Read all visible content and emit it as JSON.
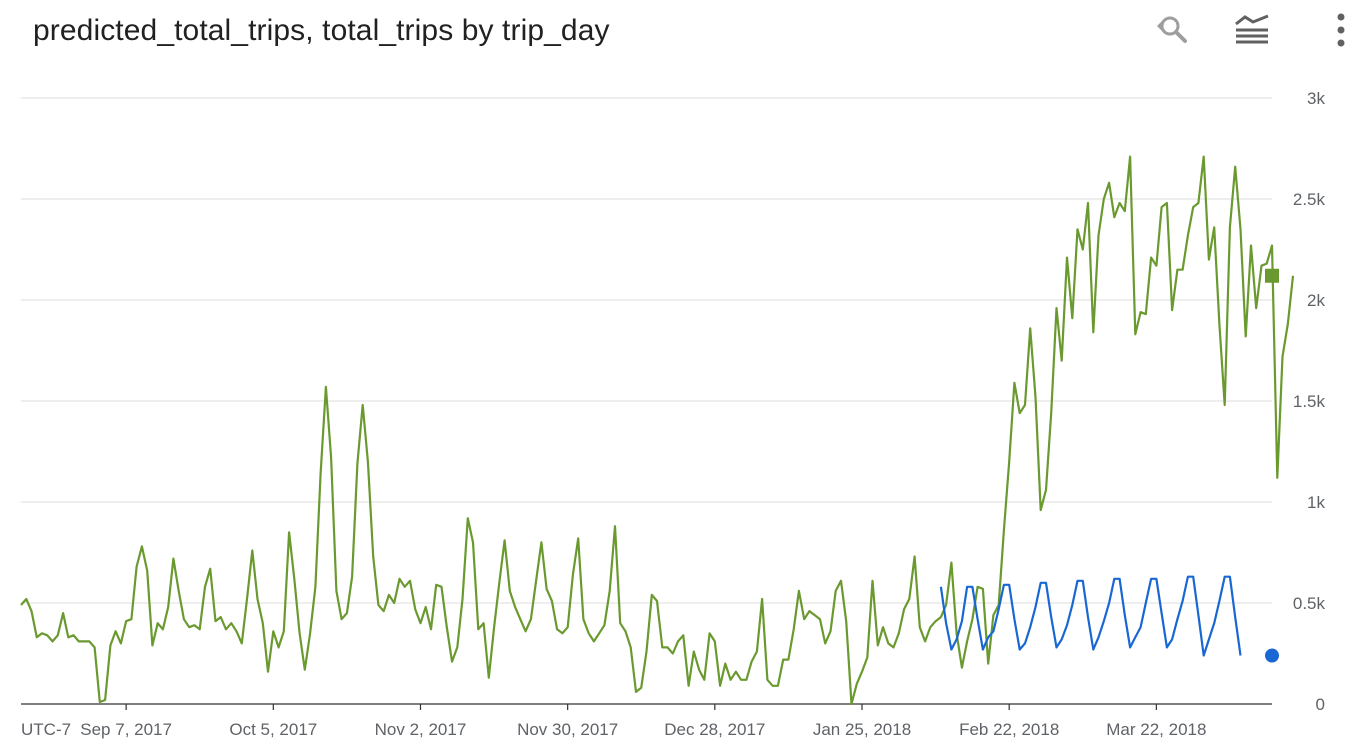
{
  "header": {
    "title": "predicted_total_trips, total_trips by trip_day",
    "reset_zoom_icon": "reset-zoom-icon",
    "legend_icon": "legend-toggle-icon",
    "more_icon": "more-vert-icon"
  },
  "chart_data": {
    "type": "line",
    "title": "predicted_total_trips, total_trips by trip_day",
    "timezone_label": "UTC-7",
    "x_tick_labels": [
      "Sep 7, 2017",
      "Oct 5, 2017",
      "Nov 2, 2017",
      "Nov 30, 2017",
      "Dec 28, 2017",
      "Jan 25, 2018",
      "Feb 22, 2018",
      "Mar 22, 2018"
    ],
    "x_tick_dates": [
      "2017-09-07",
      "2017-10-05",
      "2017-11-02",
      "2017-11-30",
      "2017-12-28",
      "2018-01-25",
      "2018-02-22",
      "2018-03-22"
    ],
    "xlim": [
      "2017-08-18",
      "2018-04-13"
    ],
    "y_tick_labels": [
      "0",
      "0.5k",
      "1k",
      "1.5k",
      "2k",
      "2.5k",
      "3k"
    ],
    "ylim": [
      0,
      3000
    ],
    "y_axis_position": "right",
    "grid": true,
    "legend": "none",
    "series": [
      {
        "color": "#6a9a2f",
        "end_marker": "square",
        "start_date": "2017-08-18",
        "values": [
          490,
          520,
          460,
          330,
          350,
          340,
          310,
          340,
          450,
          330,
          340,
          310,
          310,
          310,
          280,
          10,
          20,
          290,
          360,
          300,
          410,
          420,
          680,
          780,
          660,
          290,
          400,
          370,
          480,
          720,
          560,
          420,
          380,
          390,
          370,
          580,
          670,
          410,
          430,
          370,
          400,
          360,
          300,
          520,
          760,
          520,
          400,
          160,
          360,
          280,
          360,
          850,
          620,
          350,
          170,
          350,
          580,
          1140,
          1570,
          1220,
          560,
          420,
          450,
          630,
          1190,
          1480,
          1200,
          730,
          490,
          460,
          540,
          500,
          620,
          580,
          610,
          470,
          400,
          480,
          370,
          590,
          580,
          380,
          210,
          280,
          520,
          920,
          800,
          370,
          400,
          130,
          380,
          600,
          810,
          560,
          480,
          420,
          360,
          420,
          610,
          800,
          570,
          510,
          370,
          350,
          380,
          640,
          820,
          420,
          350,
          310,
          350,
          390,
          560,
          880,
          400,
          360,
          280,
          60,
          80,
          260,
          540,
          510,
          280,
          280,
          250,
          310,
          340,
          90,
          260,
          170,
          120,
          350,
          310,
          90,
          200,
          120,
          160,
          120,
          120,
          210,
          260,
          520,
          120,
          90,
          90,
          220,
          220,
          370,
          560,
          420,
          460,
          440,
          420,
          300,
          360,
          560,
          610,
          410,
          0,
          100,
          160,
          230,
          610,
          290,
          380,
          300,
          280,
          350,
          470,
          520,
          730,
          380,
          310,
          380,
          410,
          430,
          490,
          700,
          350,
          180,
          310,
          420,
          580,
          570,
          200,
          440,
          490,
          860,
          1200,
          1590,
          1440,
          1480,
          1860,
          1520,
          960,
          1060,
          1440,
          1960,
          1700,
          2210,
          1910,
          2350,
          2250,
          2480,
          1840,
          2320,
          2500,
          2580,
          2410,
          2480,
          2440,
          2710,
          1830,
          1940,
          1930,
          2210,
          2170,
          2460,
          2480,
          1950,
          2150,
          2150,
          2320,
          2460,
          2480,
          2710,
          2200,
          2360,
          1880,
          1480,
          2360,
          2660,
          2350,
          1820,
          2270,
          1960,
          2170,
          2180,
          2270,
          1120,
          1720,
          1880,
          2120
        ]
      },
      {
        "color": "#1967d2",
        "end_marker": "circle",
        "start_date": "2018-02-09",
        "values": [
          580,
          400,
          270,
          320,
          410,
          580,
          580,
          420,
          270,
          330,
          360,
          470,
          590,
          590,
          420,
          270,
          300,
          380,
          480,
          600,
          600,
          430,
          280,
          320,
          390,
          490,
          610,
          610,
          430,
          270,
          330,
          410,
          500,
          620,
          620,
          440,
          280,
          330,
          380,
          500,
          620,
          620,
          450,
          280,
          320,
          420,
          510,
          630,
          630,
          440,
          240,
          320,
          400,
          510,
          630,
          630,
          430,
          240
        ]
      }
    ]
  }
}
